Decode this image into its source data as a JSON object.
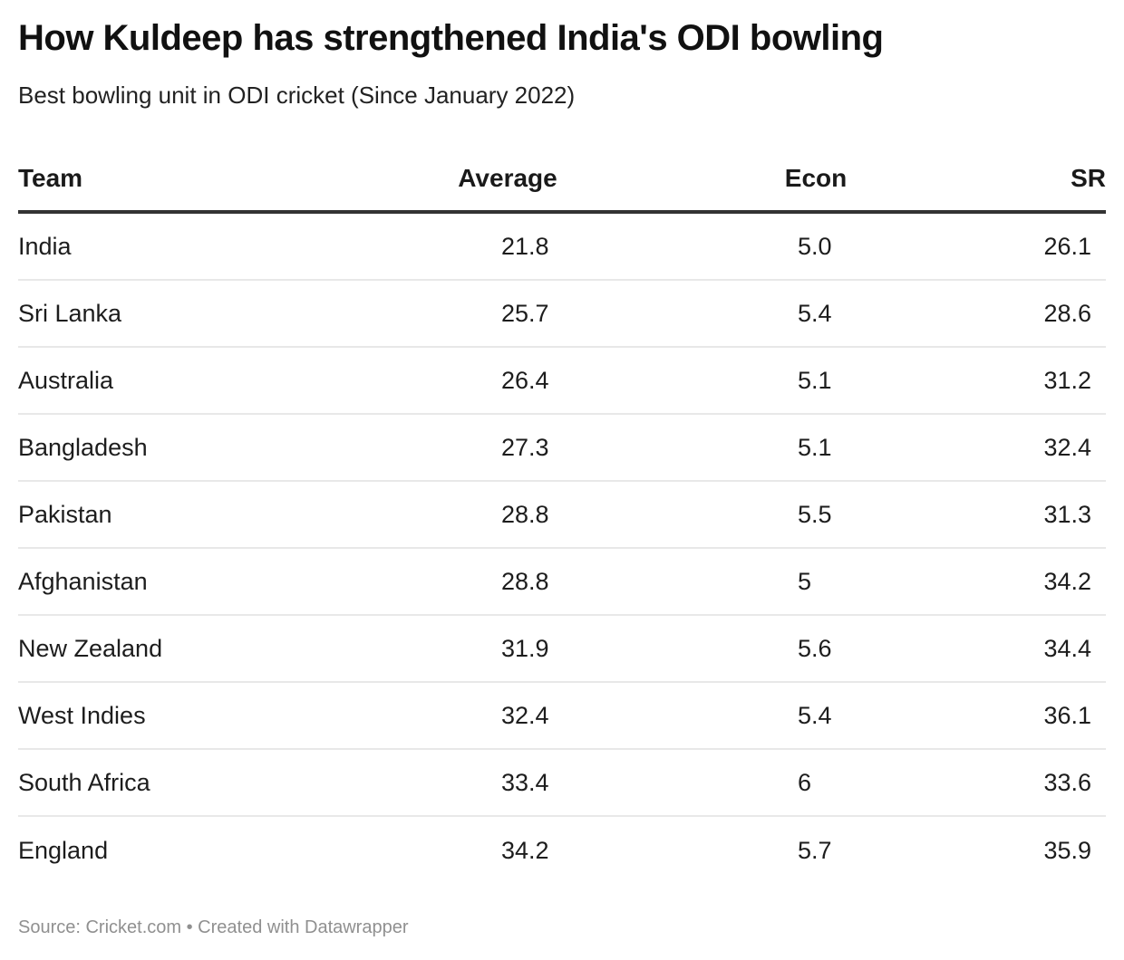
{
  "header": {
    "title": "How Kuldeep has strengthened India's ODI bowling",
    "subtitle": "Best bowling unit in ODI cricket (Since January 2022)"
  },
  "footer": {
    "source": "Source: Cricket.com • Created with Datawrapper"
  },
  "chart_data": {
    "type": "table",
    "title": "How Kuldeep has strengthened India's ODI bowling",
    "subtitle": "Best bowling unit in ODI cricket (Since January 2022)",
    "columns": [
      "Team",
      "Average",
      "Econ",
      "SR"
    ],
    "rows": [
      {
        "team": "India",
        "average": "21.8",
        "econ": "5.0",
        "sr": "26.1"
      },
      {
        "team": "Sri Lanka",
        "average": "25.7",
        "econ": "5.4",
        "sr": "28.6"
      },
      {
        "team": "Australia",
        "average": "26.4",
        "econ": "5.1",
        "sr": "31.2"
      },
      {
        "team": "Bangladesh",
        "average": "27.3",
        "econ": "5.1",
        "sr": "32.4"
      },
      {
        "team": "Pakistan",
        "average": "28.8",
        "econ": "5.5",
        "sr": "31.3"
      },
      {
        "team": "Afghanistan",
        "average": "28.8",
        "econ": "5",
        "sr": "34.2"
      },
      {
        "team": "New Zealand",
        "average": "31.9",
        "econ": "5.6",
        "sr": "34.4"
      },
      {
        "team": "West Indies",
        "average": "32.4",
        "econ": "5.4",
        "sr": "36.1"
      },
      {
        "team": "South Africa",
        "average": "33.4",
        "econ": "6",
        "sr": "33.6"
      },
      {
        "team": "England",
        "average": "34.2",
        "econ": "5.7",
        "sr": "35.9"
      }
    ],
    "source": "Source: Cricket.com • Created with Datawrapper"
  }
}
